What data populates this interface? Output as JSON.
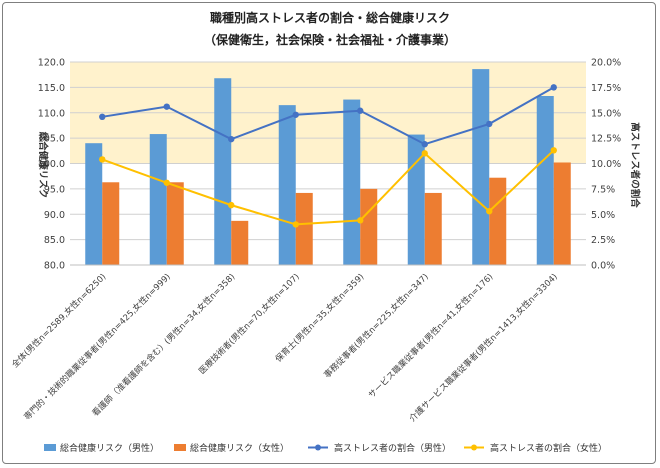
{
  "chart_data": {
    "type": "bar",
    "title": "職種別高ストレス者の割合・総合健康リスク",
    "subtitle": "（保健衛生，社会保険・社会福祉・介護事業）",
    "ylabel_left": "総合健康リスク",
    "ylabel_right": "高ストレス者の割合",
    "ylim_left": [
      80,
      120
    ],
    "yticks_left": [
      "80.0",
      "85.0",
      "90.0",
      "95.0",
      "100.0",
      "105.0",
      "110.0",
      "115.0",
      "120.0"
    ],
    "ylim_right": [
      0,
      0.2
    ],
    "yticks_right": [
      "0.0%",
      "2.5%",
      "5.0%",
      "7.5%",
      "10.0%",
      "12.5%",
      "15.0%",
      "17.5%",
      "20.0%"
    ],
    "reference_band": [
      100,
      120
    ],
    "categories": [
      "全体(男性n=2589,女性n=6250)",
      "専門的・技術的職業従事者(男性n=425,女性n=999)",
      "看護師（准看護師を含む）(男性n=34,女性n=358)",
      "医療技術者(男性n=70,女性n=107)",
      "保育士(男性n=35,女性n=359)",
      "事務従事者(男性n=225,女性n=347)",
      "サービス職業従事者(男性n=41,女性n=176)",
      "介護サービス職業従事者(男性n=1413,女性n=3304)"
    ],
    "series": [
      {
        "name": "総合健康リスク（男性）",
        "kind": "bar",
        "axis": "left",
        "color": "#5b9bd5",
        "values": [
          104.0,
          105.8,
          116.8,
          111.5,
          112.6,
          105.7,
          118.6,
          113.3
        ]
      },
      {
        "name": "総合健康リスク（女性）",
        "kind": "bar",
        "axis": "left",
        "color": "#ed7d31",
        "values": [
          96.3,
          96.3,
          88.7,
          94.2,
          95.0,
          94.2,
          97.2,
          100.2
        ]
      },
      {
        "name": "高ストレス者の割合（男性）",
        "kind": "line",
        "axis": "right",
        "color": "#4472c4",
        "values": [
          0.146,
          0.156,
          0.124,
          0.148,
          0.152,
          0.119,
          0.139,
          0.175
        ]
      },
      {
        "name": "高ストレス者の割合（女性）",
        "kind": "line",
        "axis": "right",
        "color": "#ffc000",
        "values": [
          0.104,
          0.081,
          0.059,
          0.04,
          0.044,
          0.11,
          0.053,
          0.113
        ]
      }
    ]
  }
}
